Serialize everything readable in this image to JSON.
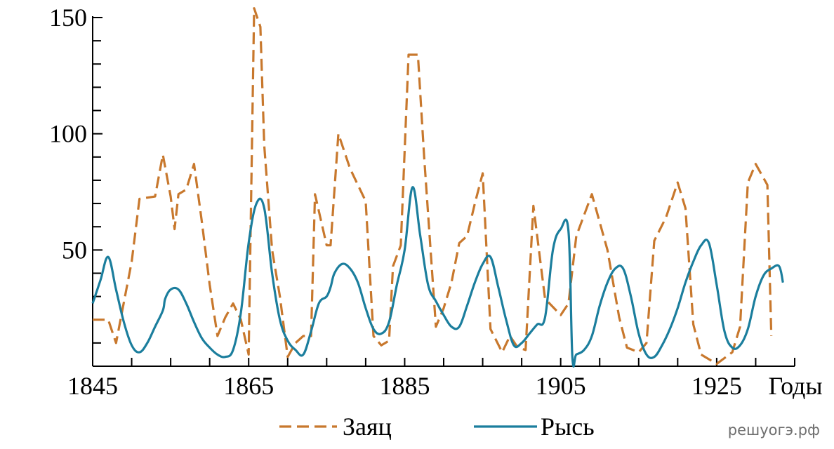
{
  "chart_data": {
    "type": "line",
    "xlabel": "Годы",
    "ylabel": "",
    "xlim": [
      1845,
      1935
    ],
    "ylim": [
      0,
      150
    ],
    "x_ticks": [
      "1845",
      "1865",
      "1885",
      "1905",
      "1925"
    ],
    "y_ticks": [
      "50",
      "100",
      "150"
    ],
    "grid": false,
    "legend_position": "bottom",
    "series": [
      {
        "name": "Заяц",
        "color": "#C8782D",
        "style": "dashed",
        "points": [
          [
            1845,
            20
          ],
          [
            1847,
            20
          ],
          [
            1848,
            10
          ],
          [
            1850,
            45
          ],
          [
            1851,
            72
          ],
          [
            1853,
            73
          ],
          [
            1854,
            91
          ],
          [
            1855,
            73
          ],
          [
            1855.5,
            59
          ],
          [
            1856,
            74
          ],
          [
            1857,
            76
          ],
          [
            1858,
            87
          ],
          [
            1859,
            62
          ],
          [
            1860,
            35
          ],
          [
            1861,
            13
          ],
          [
            1862,
            21
          ],
          [
            1863,
            27
          ],
          [
            1864,
            20
          ],
          [
            1865,
            5
          ],
          [
            1865.7,
            154
          ],
          [
            1866.5,
            146
          ],
          [
            1867,
            95
          ],
          [
            1868,
            50
          ],
          [
            1869,
            30
          ],
          [
            1870,
            4
          ],
          [
            1871,
            10
          ],
          [
            1872,
            13
          ],
          [
            1873,
            13
          ],
          [
            1873.5,
            74
          ],
          [
            1875,
            52
          ],
          [
            1875.5,
            52
          ],
          [
            1876.5,
            100
          ],
          [
            1878,
            85
          ],
          [
            1880,
            71
          ],
          [
            1881,
            13
          ],
          [
            1882,
            9
          ],
          [
            1883,
            11
          ],
          [
            1883.5,
            43
          ],
          [
            1884.5,
            52
          ],
          [
            1885.5,
            134
          ],
          [
            1886.7,
            134
          ],
          [
            1887.5,
            90
          ],
          [
            1889,
            17
          ],
          [
            1890,
            25
          ],
          [
            1891,
            36
          ],
          [
            1892,
            53
          ],
          [
            1893,
            56
          ],
          [
            1894,
            70
          ],
          [
            1895,
            83
          ],
          [
            1896,
            16
          ],
          [
            1897.5,
            6
          ],
          [
            1898.5,
            13
          ],
          [
            1899.5,
            8
          ],
          [
            1900.5,
            7
          ],
          [
            1901.5,
            69
          ],
          [
            1903,
            29
          ],
          [
            1905,
            22
          ],
          [
            1906,
            27
          ],
          [
            1907,
            56
          ],
          [
            1909,
            74
          ],
          [
            1911,
            50
          ],
          [
            1912.5,
            21
          ],
          [
            1913.5,
            8
          ],
          [
            1915,
            6
          ],
          [
            1916,
            10
          ],
          [
            1917,
            54
          ],
          [
            1918.5,
            64
          ],
          [
            1920,
            79
          ],
          [
            1921,
            68
          ],
          [
            1922,
            18
          ],
          [
            1923,
            5
          ],
          [
            1925,
            1
          ],
          [
            1927,
            6
          ],
          [
            1928,
            17
          ],
          [
            1929,
            79
          ],
          [
            1930,
            87
          ],
          [
            1931.5,
            78
          ],
          [
            1932,
            13
          ]
        ]
      },
      {
        "name": "Рысь",
        "color": "#1B7E9D",
        "style": "solid",
        "points": [
          [
            1845,
            27
          ],
          [
            1846,
            37
          ],
          [
            1847,
            47
          ],
          [
            1848,
            33
          ],
          [
            1849,
            19
          ],
          [
            1850,
            9
          ],
          [
            1851,
            6
          ],
          [
            1852,
            10
          ],
          [
            1853,
            17
          ],
          [
            1854,
            24
          ],
          [
            1854.3,
            29
          ],
          [
            1855,
            33
          ],
          [
            1856,
            33
          ],
          [
            1857,
            27
          ],
          [
            1858,
            19
          ],
          [
            1859,
            12
          ],
          [
            1860,
            8
          ],
          [
            1861,
            5
          ],
          [
            1862,
            4
          ],
          [
            1863,
            7
          ],
          [
            1864,
            23
          ],
          [
            1865,
            53
          ],
          [
            1866,
            70
          ],
          [
            1867,
            68
          ],
          [
            1868,
            40
          ],
          [
            1869,
            20
          ],
          [
            1870,
            11
          ],
          [
            1871,
            7
          ],
          [
            1872,
            5
          ],
          [
            1873,
            15
          ],
          [
            1874,
            27
          ],
          [
            1875,
            30
          ],
          [
            1875.5,
            34
          ],
          [
            1876,
            40
          ],
          [
            1877,
            44
          ],
          [
            1878,
            42
          ],
          [
            1879,
            36
          ],
          [
            1880,
            25
          ],
          [
            1881,
            16
          ],
          [
            1882,
            14
          ],
          [
            1883,
            19
          ],
          [
            1884,
            35
          ],
          [
            1885,
            50
          ],
          [
            1886,
            77
          ],
          [
            1887,
            56
          ],
          [
            1888,
            35
          ],
          [
            1889,
            28
          ],
          [
            1890,
            22
          ],
          [
            1891,
            17
          ],
          [
            1892,
            17
          ],
          [
            1893,
            26
          ],
          [
            1894,
            36
          ],
          [
            1895,
            44
          ],
          [
            1896,
            47
          ],
          [
            1897,
            34
          ],
          [
            1898,
            20
          ],
          [
            1899,
            9
          ],
          [
            1900,
            10
          ],
          [
            1901,
            14
          ],
          [
            1902,
            18
          ],
          [
            1903,
            21
          ],
          [
            1904,
            50
          ],
          [
            1905,
            59
          ],
          [
            1906,
            58
          ],
          [
            1906.5,
            4
          ],
          [
            1907,
            5
          ],
          [
            1908,
            7
          ],
          [
            1909,
            13
          ],
          [
            1910,
            26
          ],
          [
            1911,
            36
          ],
          [
            1912,
            42
          ],
          [
            1913,
            42
          ],
          [
            1914,
            30
          ],
          [
            1915,
            14
          ],
          [
            1916,
            5
          ],
          [
            1917,
            4
          ],
          [
            1918,
            9
          ],
          [
            1919,
            16
          ],
          [
            1920,
            25
          ],
          [
            1921,
            36
          ],
          [
            1922,
            45
          ],
          [
            1923,
            52
          ],
          [
            1924,
            53
          ],
          [
            1925,
            35
          ],
          [
            1926,
            15
          ],
          [
            1927,
            8
          ],
          [
            1928,
            9
          ],
          [
            1929,
            16
          ],
          [
            1930,
            30
          ],
          [
            1931,
            39
          ],
          [
            1932,
            42
          ],
          [
            1933,
            43
          ],
          [
            1933.5,
            36
          ]
        ]
      }
    ]
  },
  "watermark": "решуогэ.рф"
}
